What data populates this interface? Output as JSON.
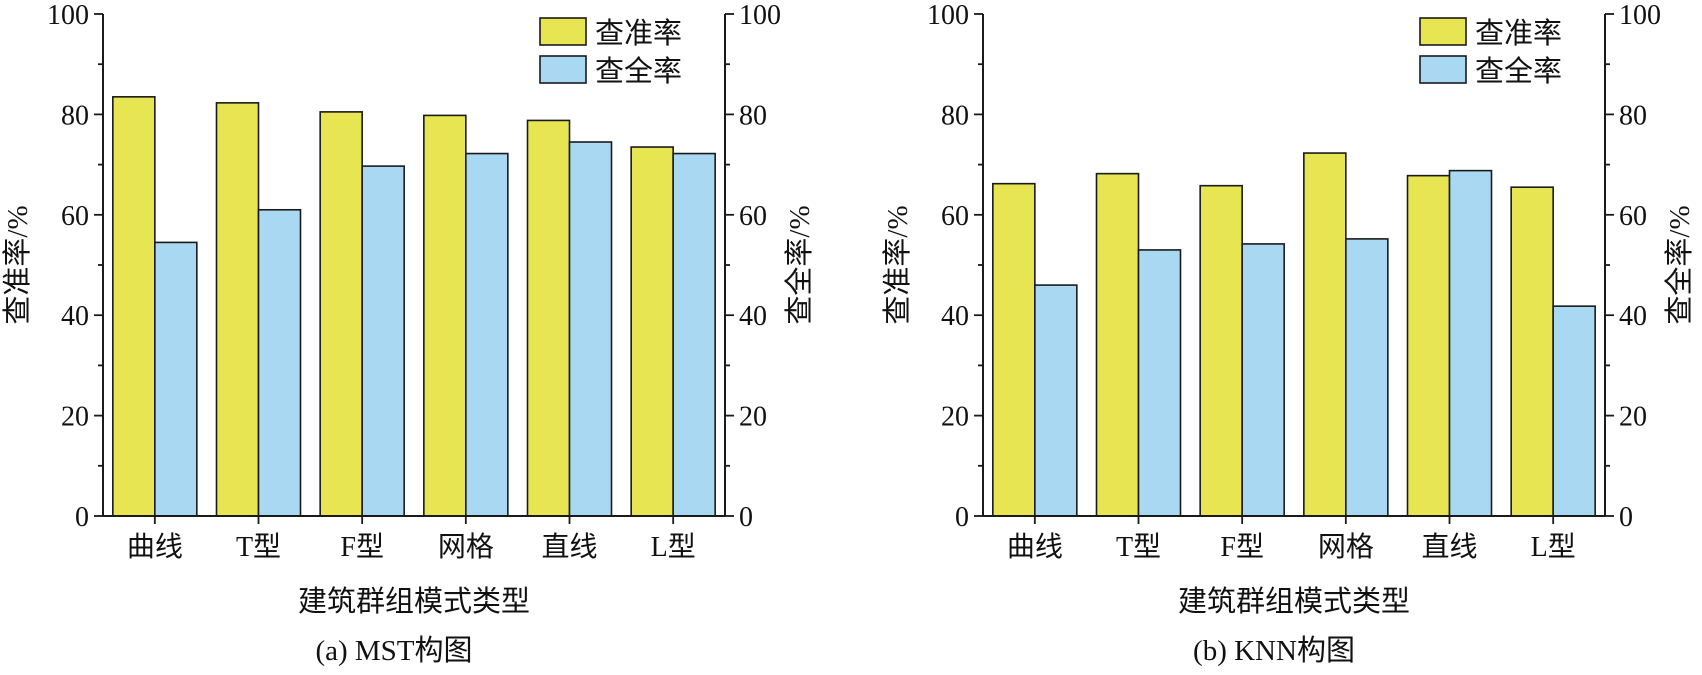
{
  "colors": {
    "precision": "#e8e552",
    "recall": "#a8d8f2",
    "outline": "#1a1a1a"
  },
  "chart_data": [
    {
      "type": "bar",
      "caption": "(a) MST构图",
      "xlabel": "建筑群组模式类型",
      "ylabel_left": "查准率/%",
      "ylabel_right": "查全率/%",
      "ylim": [
        0,
        100
      ],
      "yticks": [
        0,
        20,
        40,
        60,
        80,
        100
      ],
      "legend_position": "top-right",
      "categories": [
        "曲线",
        "T型",
        "F型",
        "网格",
        "直线",
        "L型"
      ],
      "series": [
        {
          "name": "查准率",
          "axis": "left",
          "color": "#e8e552",
          "values": [
            83.5,
            82.3,
            80.5,
            79.8,
            78.8,
            73.5
          ]
        },
        {
          "name": "查全率",
          "axis": "right",
          "color": "#a8d8f2",
          "values": [
            54.5,
            61.0,
            69.7,
            72.2,
            74.5,
            72.2
          ]
        }
      ]
    },
    {
      "type": "bar",
      "caption": "(b) KNN构图",
      "xlabel": "建筑群组模式类型",
      "ylabel_left": "查准率/%",
      "ylabel_right": "查全率/%",
      "ylim": [
        0,
        100
      ],
      "yticks": [
        0,
        20,
        40,
        60,
        80,
        100
      ],
      "legend_position": "top-right",
      "categories": [
        "曲线",
        "T型",
        "F型",
        "网格",
        "直线",
        "L型"
      ],
      "series": [
        {
          "name": "查准率",
          "axis": "left",
          "color": "#e8e552",
          "values": [
            66.2,
            68.2,
            65.8,
            72.3,
            67.8,
            65.5
          ]
        },
        {
          "name": "查全率",
          "axis": "right",
          "color": "#a8d8f2",
          "values": [
            46.0,
            53.0,
            54.2,
            55.2,
            68.8,
            41.8
          ]
        }
      ]
    }
  ]
}
